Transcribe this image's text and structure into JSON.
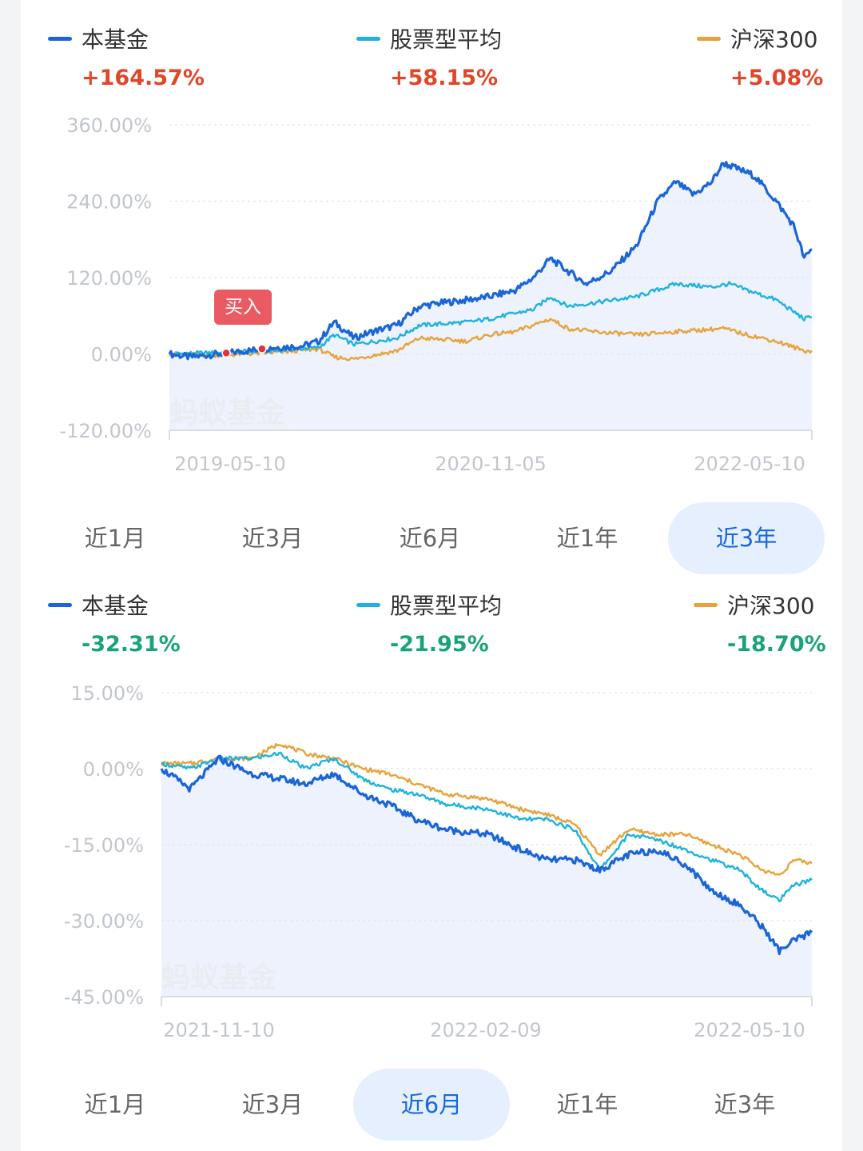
{
  "colors": {
    "fund": "#1a66d9",
    "category_avg": "#1db3dc",
    "index": "#e8a23a",
    "positive": "#e0462a",
    "negative": "#1aa37a",
    "fill": "#e8eefb",
    "grid": "#e6e8ec",
    "buy_dot": "#e0323b"
  },
  "charts": [
    {
      "legend": [
        {
          "name": "本基金",
          "value": "+164.57%",
          "color_key": "fund",
          "value_color_key": "positive"
        },
        {
          "name": "股票型平均",
          "value": "+58.15%",
          "color_key": "category_avg",
          "value_color_key": "positive"
        },
        {
          "name": "沪深300",
          "value": "+5.08%",
          "color_key": "index",
          "value_color_key": "positive"
        }
      ],
      "y_tick_labels": [
        "360.00%",
        "240.00%",
        "120.00%",
        "0.00%",
        "-120.00%"
      ],
      "x_tick_labels": [
        "2019-05-10",
        "2020-11-05",
        "2022-05-10"
      ],
      "watermark": "蚂蚁基金",
      "buy_label": "买入",
      "tabs": [
        "近1月",
        "近3月",
        "近6月",
        "近1年",
        "近3年"
      ],
      "active_tab": 4
    },
    {
      "legend": [
        {
          "name": "本基金",
          "value": "-32.31%",
          "color_key": "fund",
          "value_color_key": "negative"
        },
        {
          "name": "股票型平均",
          "value": "-21.95%",
          "color_key": "category_avg",
          "value_color_key": "negative"
        },
        {
          "name": "沪深300",
          "value": "-18.70%",
          "color_key": "index",
          "value_color_key": "negative"
        }
      ],
      "y_tick_labels": [
        "15.00%",
        "0.00%",
        "-15.00%",
        "-30.00%",
        "-45.00%"
      ],
      "x_tick_labels": [
        "2021-11-10",
        "2022-02-09",
        "2022-05-10"
      ],
      "watermark": "蚂蚁基金",
      "tabs": [
        "近1月",
        "近3月",
        "近6月",
        "近1年",
        "近3年"
      ],
      "active_tab": 2
    }
  ],
  "chart_data": [
    {
      "type": "line",
      "period": "近3年",
      "ylim": [
        -120,
        360
      ],
      "y_unit": "%",
      "x_range": [
        "2019-05-10",
        "2022-05-10"
      ],
      "grid": true,
      "legend_position": "top",
      "series": [
        {
          "name": "本基金",
          "final_value": 164.57,
          "color_key": "fund",
          "filled": true,
          "points": [
            [
              "2019-05-10",
              0
            ],
            [
              "2019-06-15",
              -5
            ],
            [
              "2019-08-01",
              0
            ],
            [
              "2019-09-20",
              5
            ],
            [
              "2019-11-01",
              10
            ],
            [
              "2019-12-20",
              12
            ],
            [
              "2020-01-20",
              20
            ],
            [
              "2020-02-15",
              50
            ],
            [
              "2020-03-20",
              25
            ],
            [
              "2020-04-20",
              35
            ],
            [
              "2020-06-01",
              45
            ],
            [
              "2020-07-10",
              75
            ],
            [
              "2020-08-15",
              80
            ],
            [
              "2020-09-30",
              85
            ],
            [
              "2020-11-05",
              90
            ],
            [
              "2020-12-20",
              100
            ],
            [
              "2021-01-20",
              120
            ],
            [
              "2021-02-18",
              150
            ],
            [
              "2021-03-20",
              130
            ],
            [
              "2021-04-20",
              110
            ],
            [
              "2021-06-01",
              130
            ],
            [
              "2021-07-15",
              170
            ],
            [
              "2021-08-20",
              240
            ],
            [
              "2021-09-20",
              270
            ],
            [
              "2021-10-20",
              250
            ],
            [
              "2021-11-20",
              270
            ],
            [
              "2021-12-10",
              300
            ],
            [
              "2022-01-05",
              290
            ],
            [
              "2022-02-01",
              280
            ],
            [
              "2022-03-10",
              240
            ],
            [
              "2022-04-10",
              200
            ],
            [
              "2022-04-27",
              150
            ],
            [
              "2022-05-10",
              164.57
            ]
          ]
        },
        {
          "name": "股票型平均",
          "final_value": 58.15,
          "color_key": "category_avg",
          "filled": false,
          "points": [
            [
              "2019-05-10",
              0
            ],
            [
              "2019-08-01",
              2
            ],
            [
              "2019-11-01",
              5
            ],
            [
              "2020-01-20",
              10
            ],
            [
              "2020-02-15",
              30
            ],
            [
              "2020-03-20",
              15
            ],
            [
              "2020-06-01",
              25
            ],
            [
              "2020-07-10",
              45
            ],
            [
              "2020-09-30",
              50
            ],
            [
              "2020-11-05",
              55
            ],
            [
              "2021-01-20",
              70
            ],
            [
              "2021-02-18",
              90
            ],
            [
              "2021-03-20",
              75
            ],
            [
              "2021-05-01",
              80
            ],
            [
              "2021-07-15",
              90
            ],
            [
              "2021-09-20",
              110
            ],
            [
              "2021-11-20",
              105
            ],
            [
              "2021-12-20",
              110
            ],
            [
              "2022-01-20",
              100
            ],
            [
              "2022-03-10",
              85
            ],
            [
              "2022-04-27",
              55
            ],
            [
              "2022-05-10",
              58.15
            ]
          ]
        },
        {
          "name": "沪深300",
          "final_value": 5.08,
          "color_key": "index",
          "filled": false,
          "points": [
            [
              "2019-05-10",
              0
            ],
            [
              "2019-08-01",
              -2
            ],
            [
              "2019-11-01",
              2
            ],
            [
              "2020-01-20",
              8
            ],
            [
              "2020-02-15",
              -5
            ],
            [
              "2020-03-20",
              -8
            ],
            [
              "2020-06-01",
              5
            ],
            [
              "2020-07-10",
              25
            ],
            [
              "2020-09-30",
              20
            ],
            [
              "2020-11-05",
              30
            ],
            [
              "2020-12-20",
              35
            ],
            [
              "2021-02-18",
              55
            ],
            [
              "2021-03-20",
              40
            ],
            [
              "2021-05-01",
              35
            ],
            [
              "2021-07-15",
              30
            ],
            [
              "2021-09-20",
              35
            ],
            [
              "2021-12-10",
              40
            ],
            [
              "2022-01-20",
              30
            ],
            [
              "2022-03-10",
              20
            ],
            [
              "2022-04-27",
              5
            ],
            [
              "2022-05-10",
              5.08
            ]
          ]
        }
      ],
      "buy_markers": [
        "2019-08-15",
        "2019-10-15"
      ]
    },
    {
      "type": "line",
      "period": "近6月",
      "ylim": [
        -45,
        15
      ],
      "y_unit": "%",
      "x_range": [
        "2021-11-10",
        "2022-05-10"
      ],
      "grid": true,
      "legend_position": "top",
      "series": [
        {
          "name": "本基金",
          "final_value": -32.31,
          "color_key": "fund",
          "filled": true,
          "points": [
            [
              "2021-11-10",
              0
            ],
            [
              "2021-11-18",
              -4
            ],
            [
              "2021-11-26",
              2
            ],
            [
              "2021-12-05",
              -1
            ],
            [
              "2021-12-13",
              -2
            ],
            [
              "2021-12-20",
              -3
            ],
            [
              "2021-12-28",
              -1
            ],
            [
              "2022-01-05",
              -5
            ],
            [
              "2022-01-12",
              -7
            ],
            [
              "2022-01-20",
              -10
            ],
            [
              "2022-01-28",
              -12
            ],
            [
              "2022-02-09",
              -13
            ],
            [
              "2022-02-18",
              -16
            ],
            [
              "2022-02-25",
              -18
            ],
            [
              "2022-03-05",
              -18
            ],
            [
              "2022-03-12",
              -20
            ],
            [
              "2022-03-20",
              -17
            ],
            [
              "2022-03-28",
              -16
            ],
            [
              "2022-04-05",
              -19
            ],
            [
              "2022-04-12",
              -24
            ],
            [
              "2022-04-20",
              -27
            ],
            [
              "2022-04-26",
              -31
            ],
            [
              "2022-05-01",
              -36
            ],
            [
              "2022-05-05",
              -34
            ],
            [
              "2022-05-10",
              -32.31
            ]
          ]
        },
        {
          "name": "股票型平均",
          "final_value": -21.95,
          "color_key": "category_avg",
          "filled": false,
          "points": [
            [
              "2021-11-10",
              1
            ],
            [
              "2021-11-18",
              0
            ],
            [
              "2021-11-26",
              2
            ],
            [
              "2021-12-05",
              2
            ],
            [
              "2021-12-13",
              3
            ],
            [
              "2021-12-20",
              0
            ],
            [
              "2021-12-28",
              2
            ],
            [
              "2022-01-05",
              -2
            ],
            [
              "2022-01-12",
              -4
            ],
            [
              "2022-01-20",
              -5
            ],
            [
              "2022-01-28",
              -7
            ],
            [
              "2022-02-09",
              -8
            ],
            [
              "2022-02-18",
              -10
            ],
            [
              "2022-02-25",
              -10
            ],
            [
              "2022-03-05",
              -12
            ],
            [
              "2022-03-12",
              -20
            ],
            [
              "2022-03-20",
              -13
            ],
            [
              "2022-03-28",
              -14
            ],
            [
              "2022-04-05",
              -16
            ],
            [
              "2022-04-12",
              -18
            ],
            [
              "2022-04-20",
              -20
            ],
            [
              "2022-04-26",
              -24
            ],
            [
              "2022-05-01",
              -26
            ],
            [
              "2022-05-05",
              -23
            ],
            [
              "2022-05-10",
              -21.95
            ]
          ]
        },
        {
          "name": "沪深300",
          "final_value": -18.7,
          "color_key": "index",
          "filled": false,
          "points": [
            [
              "2021-11-10",
              1
            ],
            [
              "2021-11-18",
              1
            ],
            [
              "2021-11-26",
              2
            ],
            [
              "2021-12-05",
              2
            ],
            [
              "2021-12-13",
              5
            ],
            [
              "2021-12-20",
              3
            ],
            [
              "2021-12-28",
              2
            ],
            [
              "2022-01-05",
              0
            ],
            [
              "2022-01-12",
              -1
            ],
            [
              "2022-01-20",
              -3
            ],
            [
              "2022-01-28",
              -5
            ],
            [
              "2022-02-09",
              -6
            ],
            [
              "2022-02-18",
              -8
            ],
            [
              "2022-02-25",
              -9
            ],
            [
              "2022-03-05",
              -11
            ],
            [
              "2022-03-12",
              -17
            ],
            [
              "2022-03-20",
              -12
            ],
            [
              "2022-03-28",
              -13
            ],
            [
              "2022-04-05",
              -13
            ],
            [
              "2022-04-12",
              -15
            ],
            [
              "2022-04-20",
              -17
            ],
            [
              "2022-04-26",
              -20
            ],
            [
              "2022-05-01",
              -21
            ],
            [
              "2022-05-05",
              -18
            ],
            [
              "2022-05-10",
              -18.7
            ]
          ]
        }
      ]
    }
  ]
}
